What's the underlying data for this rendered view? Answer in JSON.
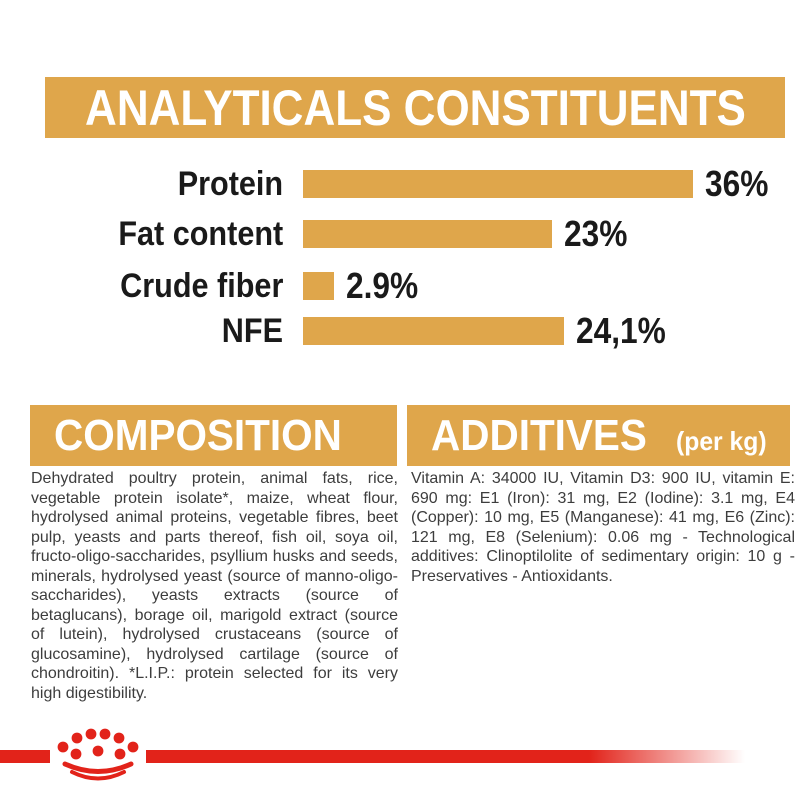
{
  "colors": {
    "gold": "#dfa64b",
    "brand_red": "#e2231a",
    "heading_text": "#ffffff",
    "chart_text": "#1a1a1a",
    "body_text": "#3d3d3d"
  },
  "header": {
    "title": "ANALYTICALS CONSTITUENTS"
  },
  "chart_data": {
    "type": "bar",
    "orientation": "horizontal",
    "title": "ANALYTICALS CONSTITUENTS",
    "categories": [
      "Protein",
      "Fat content",
      "Crude fiber",
      "NFE"
    ],
    "values": [
      36,
      23,
      2.9,
      24.1
    ],
    "value_labels": [
      "36%",
      "23%",
      "2.9%",
      "24,1%"
    ],
    "xlim": [
      0,
      36
    ],
    "bar_color": "#dfa64b",
    "grid": false,
    "legend": false
  },
  "composition": {
    "title": "COMPOSITION",
    "body": "Dehydrated poultry protein, animal fats, rice, vegetable protein isolate*, maize, wheat flour, hydrolysed animal proteins, vegetable fibres, beet pulp, yeasts and parts thereof, fish oil, soya oil, fructo-oligo-saccharides, psyllium husks and seeds, minerals, hydrolysed yeast (source of manno-oligo-saccharides), yeasts extracts (source of betaglucans), borage oil, marigold extract (source of lutein), hydrolysed crustaceans (source of glucosamine), hydrolysed cartilage (source of chondroitin). *L.I.P.: protein selected for its very high digestibility."
  },
  "additives": {
    "title": "ADDITIVES",
    "unit_label": "(per kg)",
    "body": "Vitamin A: 34000 IU, Vitamin D3: 900 IU, vitamin E: 690 mg: E1 (Iron): 31 mg, E2 (Iodine): 3.1 mg, E4 (Copper): 10 mg, E5 (Manganese): 41 mg, E6 (Zinc): 121 mg, E8 (Selenium): 0.06 mg - Technological additives: Clinoptilolite of sedimentary origin: 10 g - Preservatives - Antioxidants."
  },
  "footer": {
    "logo": "royal-canin-crown"
  }
}
